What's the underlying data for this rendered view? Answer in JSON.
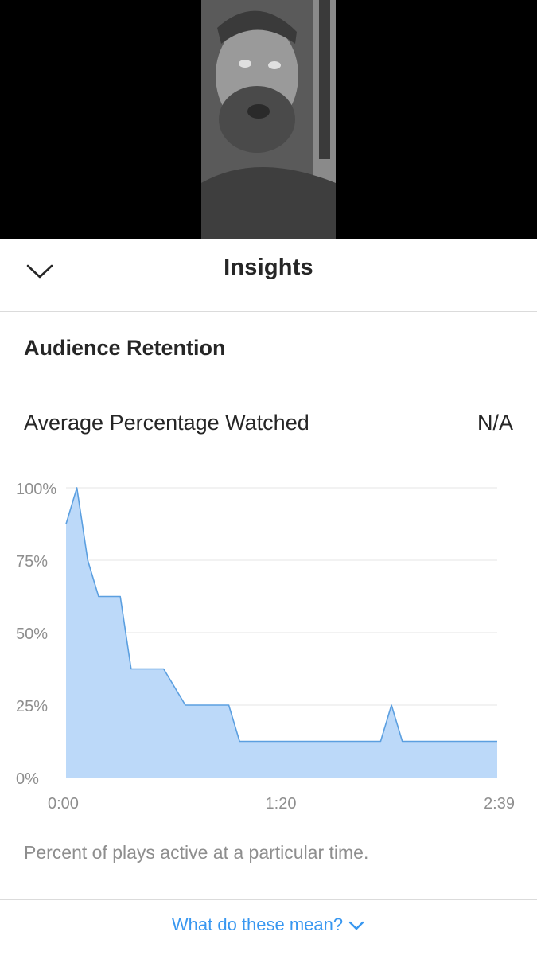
{
  "header": {
    "title": "Insights"
  },
  "section": {
    "title": "Audience Retention",
    "metric_label": "Average Percentage Watched",
    "metric_value": "N/A"
  },
  "chart_data": {
    "type": "area",
    "title": "",
    "xlabel": "",
    "ylabel": "",
    "x_ticks": [
      "0:00",
      "1:20",
      "2:39"
    ],
    "y_ticks": [
      "0%",
      "25%",
      "50%",
      "75%",
      "100%"
    ],
    "xlim": [
      0,
      159
    ],
    "ylim": [
      0,
      100
    ],
    "grid": true,
    "series": [
      {
        "x": [
          0,
          4,
          8,
          12,
          20,
          24,
          36,
          44,
          60,
          64,
          116,
          120,
          124,
          159
        ],
        "values": [
          87.5,
          100,
          75,
          62.5,
          62.5,
          37.5,
          37.5,
          25,
          25,
          12.5,
          12.5,
          25,
          12.5,
          12.5
        ],
        "color": "#bcd9f9",
        "line_color": "#5b9fe0"
      }
    ]
  },
  "caption": "Percent of plays active at a particular time.",
  "help_link": "What do these mean?"
}
